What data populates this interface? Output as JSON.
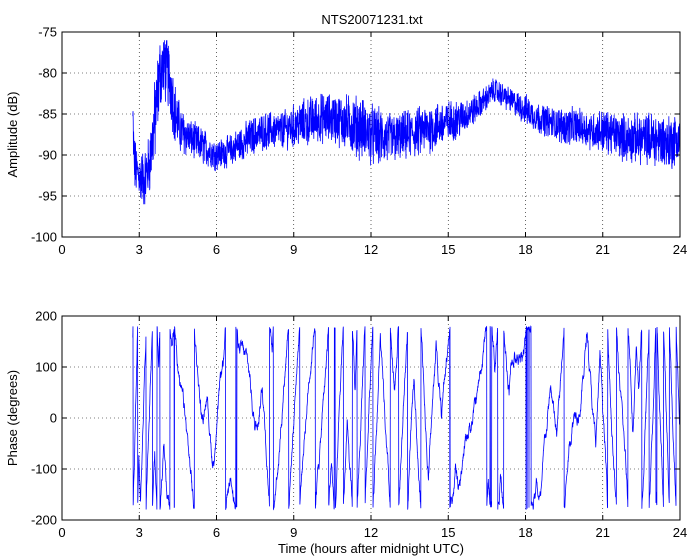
{
  "chart_data": [
    {
      "type": "line",
      "title": "NTS20071231.txt",
      "xlabel": "",
      "ylabel": "Amplitude (dB)",
      "xlim": [
        0,
        24
      ],
      "ylim": [
        -100,
        -75
      ],
      "grid": true,
      "x_ticks": [
        "0",
        "3",
        "6",
        "9",
        "12",
        "15",
        "18",
        "21",
        "24"
      ],
      "y_ticks": [
        "-75",
        "-80",
        "-85",
        "-90",
        "-95",
        "-100"
      ],
      "line_color": "#0000ff",
      "series": [
        {
          "x": [
            2.75,
            2.8,
            2.9,
            3.0,
            3.2,
            3.4,
            3.6,
            3.8,
            4.0,
            4.2,
            4.4,
            4.6,
            5.0,
            5.5,
            6.0,
            6.5,
            7.0,
            7.5,
            8.0,
            8.5,
            9.0,
            9.5,
            10.0,
            10.5,
            11.0,
            11.5,
            12.0,
            12.5,
            13.0,
            13.5,
            14.0,
            14.5,
            15.0,
            15.5,
            16.0,
            16.5,
            16.8,
            17.0,
            17.5,
            18.0,
            18.5,
            19.0,
            19.5,
            20.0,
            20.5,
            21.0,
            21.5,
            22.0,
            22.5,
            23.0,
            23.5,
            24.0
          ],
          "y": [
            -86,
            -91,
            -92,
            -92.5,
            -93,
            -91,
            -86,
            -80,
            -79,
            -81,
            -85,
            -87,
            -88,
            -89,
            -90,
            -89.5,
            -88.5,
            -87.5,
            -87,
            -87,
            -86.5,
            -86,
            -85.5,
            -85.5,
            -86,
            -86.5,
            -87.5,
            -88,
            -88,
            -87.5,
            -87,
            -86.5,
            -86,
            -85.5,
            -84.5,
            -83,
            -82,
            -82.5,
            -83.5,
            -84.5,
            -85.5,
            -86,
            -86.5,
            -86.5,
            -87,
            -87,
            -87.5,
            -88,
            -88,
            -88,
            -88.5,
            -88
          ],
          "noise": [
            6,
            5,
            4,
            4,
            5,
            5,
            7,
            6,
            6,
            6,
            5,
            4,
            3,
            3,
            2.5,
            2.5,
            3,
            3,
            3,
            3,
            3.5,
            4,
            4,
            4,
            4.5,
            5,
            5,
            4.5,
            4,
            4,
            4,
            4,
            3.5,
            3,
            2.5,
            2,
            2,
            2,
            2,
            2.5,
            2.5,
            2.5,
            3,
            3,
            3,
            3.5,
            3.5,
            4,
            4,
            4.5,
            4.5,
            4.5
          ]
        }
      ]
    },
    {
      "type": "line",
      "title": "",
      "xlabel": "Time (hours after midnight UTC)",
      "ylabel": "Phase (degrees)",
      "xlim": [
        0,
        24
      ],
      "ylim": [
        -200,
        200
      ],
      "grid": true,
      "x_ticks": [
        "0",
        "3",
        "6",
        "9",
        "12",
        "15",
        "18",
        "21",
        "24"
      ],
      "y_ticks": [
        "200",
        "100",
        "0",
        "-100",
        "-200"
      ],
      "line_color": "#0000ff",
      "wrap": [
        -180,
        180
      ],
      "series": [
        {
          "x_start": 2.75,
          "x_end": 24.0,
          "slopes": [
            {
              "x": 2.75,
              "rate": 2200
            },
            {
              "x": 3.6,
              "rate": 1400
            },
            {
              "x": 4.2,
              "rate": 420
            },
            {
              "x": 5.0,
              "rate": 600
            },
            {
              "x": 6.0,
              "rate": 380
            },
            {
              "x": 7.0,
              "rate": 250
            },
            {
              "x": 8.0,
              "rate": 700
            },
            {
              "x": 9.0,
              "rate": 950
            },
            {
              "x": 10.0,
              "rate": 600
            },
            {
              "x": 11.0,
              "rate": 1100
            },
            {
              "x": 12.0,
              "rate": 1300
            },
            {
              "x": 13.0,
              "rate": 1000
            },
            {
              "x": 14.0,
              "rate": 900
            },
            {
              "x": 15.0,
              "rate": 500
            },
            {
              "x": 16.0,
              "rate": 140
            },
            {
              "x": 17.0,
              "rate": 900
            },
            {
              "x": 17.6,
              "rate": 160
            },
            {
              "x": 18.5,
              "rate": 300
            },
            {
              "x": 19.5,
              "rate": 700
            },
            {
              "x": 20.0,
              "rate": 350
            },
            {
              "x": 21.0,
              "rate": 1100
            },
            {
              "x": 22.0,
              "rate": 800
            },
            {
              "x": 23.0,
              "rate": 1400
            },
            {
              "x": 24.0,
              "rate": 1400
            }
          ]
        }
      ]
    }
  ]
}
